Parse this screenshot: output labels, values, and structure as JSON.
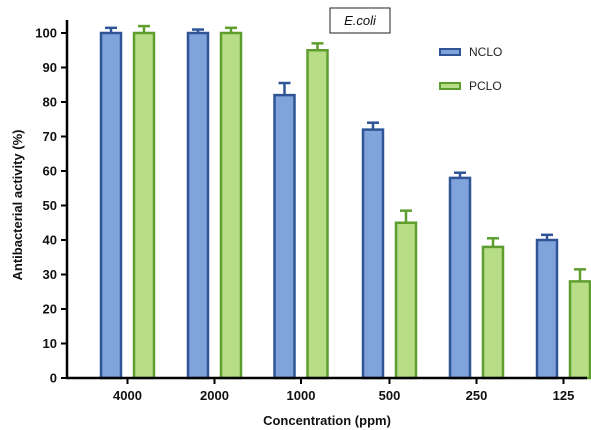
{
  "chart_data": {
    "type": "bar",
    "title": "E.coli",
    "xlabel": "Concentration (ppm)",
    "ylabel": "Antibacterial activity (%)",
    "ylim": [
      0,
      105
    ],
    "yticks": [
      0,
      10,
      20,
      30,
      40,
      50,
      60,
      70,
      80,
      90,
      100
    ],
    "categories": [
      "4000",
      "2000",
      "1000",
      "500",
      "250",
      "125"
    ],
    "series": [
      {
        "name": "NCLO",
        "fill": "#7FA3DA",
        "stroke": "#2F5597",
        "values": [
          100,
          100,
          82,
          72,
          58,
          40
        ],
        "errors": [
          1.5,
          1,
          3.5,
          2,
          1.5,
          1.5
        ]
      },
      {
        "name": "PCLO",
        "fill": "#B8DD87",
        "stroke": "#5E9E2E",
        "values": [
          100,
          100,
          95,
          45,
          38,
          28
        ],
        "errors": [
          2,
          1.5,
          2,
          3.5,
          2.5,
          3.5
        ]
      }
    ],
    "legend_position": "top-right",
    "grid": false
  }
}
